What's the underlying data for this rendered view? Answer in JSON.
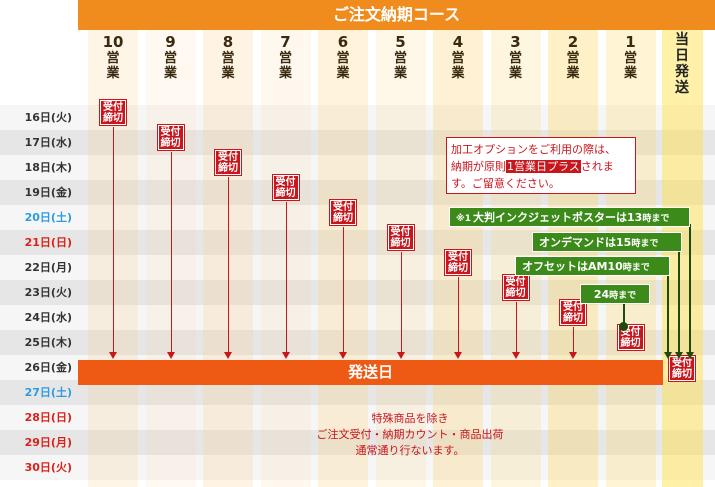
{
  "header": {
    "title": "ご注文納期コース"
  },
  "columns": [
    {
      "num": "10",
      "label": "営業"
    },
    {
      "num": "9",
      "label": "営業"
    },
    {
      "num": "8",
      "label": "営業"
    },
    {
      "num": "7",
      "label": "営業"
    },
    {
      "num": "6",
      "label": "営業"
    },
    {
      "num": "5",
      "label": "営業"
    },
    {
      "num": "4",
      "label": "営業"
    },
    {
      "num": "3",
      "label": "営業"
    },
    {
      "num": "2",
      "label": "営業"
    },
    {
      "num": "1",
      "label": "営業"
    }
  ],
  "today_column": {
    "chars": [
      "当",
      "日",
      "発",
      "送"
    ]
  },
  "dates": [
    {
      "label": "16日(火)",
      "type": "weekday"
    },
    {
      "label": "17日(水)",
      "type": "weekday"
    },
    {
      "label": "18日(木)",
      "type": "weekday"
    },
    {
      "label": "19日(金)",
      "type": "weekday"
    },
    {
      "label": "20日(土)",
      "type": "sat"
    },
    {
      "label": "21日(日)",
      "type": "holiday"
    },
    {
      "label": "22日(月)",
      "type": "weekday"
    },
    {
      "label": "23日(火)",
      "type": "weekday"
    },
    {
      "label": "24日(水)",
      "type": "weekday"
    },
    {
      "label": "25日(木)",
      "type": "weekday"
    },
    {
      "label": "26日(金)",
      "type": "weekday"
    },
    {
      "label": "27日(土)",
      "type": "sat"
    },
    {
      "label": "28日(日)",
      "type": "holiday"
    },
    {
      "label": "29日(月)",
      "type": "holiday"
    },
    {
      "label": "30日(火)",
      "type": "holiday"
    }
  ],
  "cutoff_label": {
    "line1": "受付",
    "line2": "締切"
  },
  "cutoffs": [
    {
      "col": 0,
      "row": 0
    },
    {
      "col": 1,
      "row": 1
    },
    {
      "col": 2,
      "row": 2
    },
    {
      "col": 3,
      "row": 3
    },
    {
      "col": 4,
      "row": 4
    },
    {
      "col": 5,
      "row": 5
    },
    {
      "col": 6,
      "row": 6
    },
    {
      "col": 7,
      "row": 7
    },
    {
      "col": 8,
      "row": 8
    },
    {
      "col": 9,
      "row": 9
    },
    {
      "col": 10,
      "row": 10
    }
  ],
  "shipping_bar": {
    "label": "発送日"
  },
  "option_note": {
    "line1": "加工オプションをご利用の際は、",
    "line2_pre": "納期が原則",
    "line2_highlight": "1営業日プラス",
    "line2_post": "されま",
    "line3": "す。ご留意ください。"
  },
  "green_tags": [
    {
      "prefix": "※1",
      "main": "大判インクジェットポスターは13",
      "suffix": "時まで"
    },
    {
      "prefix": "",
      "main": "オンデマンドは15",
      "suffix": "時まで"
    },
    {
      "prefix": "",
      "main": "オフセットはAM10",
      "suffix": "時まで"
    },
    {
      "prefix": "",
      "main": "24",
      "suffix": "時まで"
    }
  ],
  "bottom_note": {
    "line1": "特殊商品を除き",
    "line2": "ご注文受付・納期カウント・商品出荷",
    "line3": "通常通り行ないます。"
  },
  "colors": {
    "header_orange": "#f08c1e",
    "ship_bar": "#ee5a14",
    "cutoff_red": "#c8161d",
    "green_tag": "#3c8a1a",
    "saturday_blue": "#2e9be0",
    "holiday_red": "#d9211b"
  }
}
